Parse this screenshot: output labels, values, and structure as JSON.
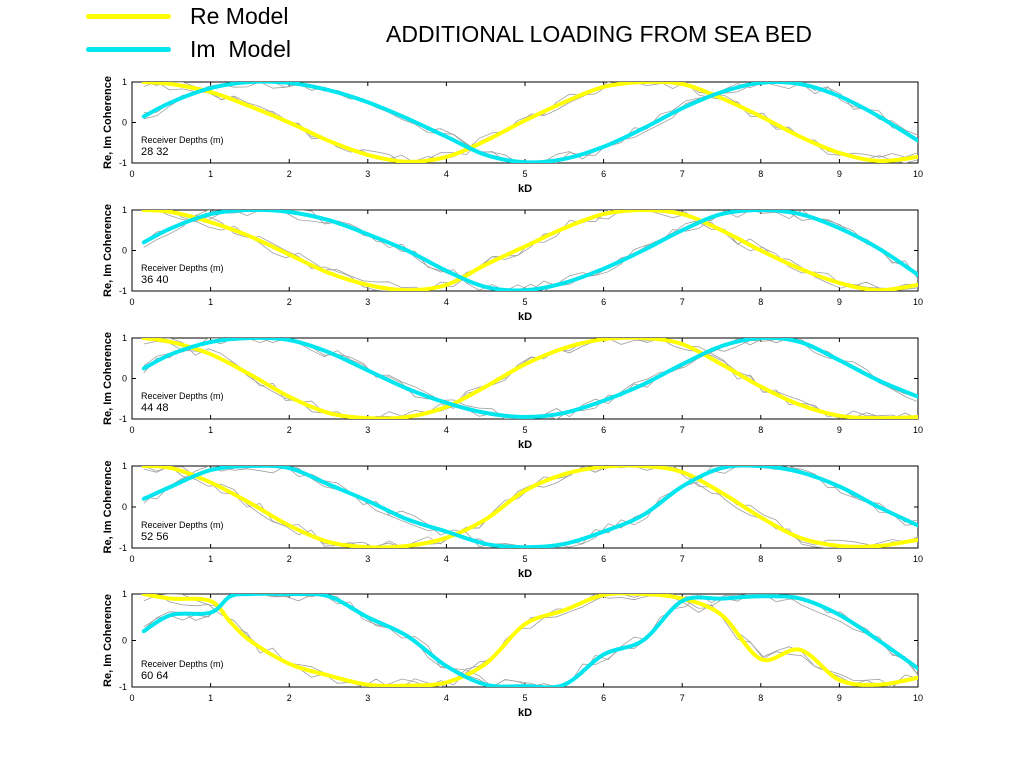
{
  "title": "ADDITIONAL LOADING FROM SEA BED",
  "legend": {
    "re_label": "Re Model",
    "im_label": "Im  Model",
    "re_color": "#ffff00",
    "im_color": "#00e5ee",
    "data_color": "#a0a0a0"
  },
  "chart_data": [
    {
      "type": "line",
      "xlabel": "kD",
      "ylabel": "Re, Im Coherence",
      "xlim": [
        0,
        10
      ],
      "ylim": [
        -1,
        1
      ],
      "xticks": [
        "0",
        "1",
        "2",
        "3",
        "4",
        "5",
        "6",
        "7",
        "8",
        "9",
        "10"
      ],
      "yticks": [
        "1",
        "0",
        "-1"
      ],
      "annotation_title": "Receiver Depths (m)",
      "annotation_value": "28  32",
      "series": [
        {
          "name": "Re Model",
          "x": [
            0.15,
            0.5,
            1.0,
            1.5,
            2.0,
            2.5,
            3.0,
            3.5,
            4.0,
            4.5,
            5.0,
            5.5,
            6.0,
            6.5,
            7.0,
            7.5,
            8.0,
            8.5,
            9.0,
            9.5,
            10.0
          ],
          "y": [
            1.0,
            0.95,
            0.75,
            0.4,
            0.0,
            -0.45,
            -0.8,
            -0.97,
            -0.85,
            -0.45,
            0.05,
            0.5,
            0.88,
            1.0,
            0.95,
            0.6,
            0.15,
            -0.35,
            -0.75,
            -0.95,
            -0.85
          ]
        },
        {
          "name": "Im  Model",
          "x": [
            0.15,
            0.5,
            1.0,
            1.5,
            2.0,
            2.5,
            3.0,
            3.5,
            4.0,
            4.5,
            5.0,
            5.5,
            6.0,
            6.5,
            7.0,
            7.5,
            8.0,
            8.5,
            9.0,
            9.5,
            10.0
          ],
          "y": [
            0.15,
            0.5,
            0.85,
            1.0,
            0.98,
            0.8,
            0.5,
            0.1,
            -0.35,
            -0.8,
            -0.98,
            -0.9,
            -0.6,
            -0.15,
            0.35,
            0.75,
            0.98,
            0.95,
            0.65,
            0.15,
            -0.45
          ]
        }
      ]
    },
    {
      "type": "line",
      "xlabel": "kD",
      "ylabel": "Re, Im Coherence",
      "xlim": [
        0,
        10
      ],
      "ylim": [
        -1,
        1
      ],
      "xticks": [
        "0",
        "1",
        "2",
        "3",
        "4",
        "5",
        "6",
        "7",
        "8",
        "9",
        "10"
      ],
      "yticks": [
        "1",
        "0",
        "-1"
      ],
      "annotation_title": "Receiver Depths (m)",
      "annotation_value": "36  40",
      "series": [
        {
          "name": "Re Model",
          "x": [
            0.15,
            0.5,
            1.0,
            1.5,
            2.0,
            2.5,
            3.0,
            3.5,
            4.0,
            4.5,
            5.0,
            5.5,
            6.0,
            6.5,
            7.0,
            7.5,
            8.0,
            8.5,
            9.0,
            9.5,
            10.0
          ],
          "y": [
            1.0,
            0.95,
            0.7,
            0.35,
            -0.1,
            -0.55,
            -0.85,
            -0.98,
            -0.85,
            -0.35,
            0.1,
            0.55,
            0.9,
            1.0,
            0.9,
            0.5,
            0.0,
            -0.45,
            -0.8,
            -0.98,
            -0.85
          ]
        },
        {
          "name": "Im  Model",
          "x": [
            0.15,
            0.5,
            1.0,
            1.5,
            2.0,
            2.5,
            3.0,
            3.5,
            4.0,
            4.5,
            5.0,
            5.5,
            6.0,
            6.5,
            7.0,
            7.5,
            8.0,
            8.5,
            9.0,
            9.5,
            10.0
          ],
          "y": [
            0.2,
            0.55,
            0.9,
            1.0,
            0.95,
            0.75,
            0.4,
            0.0,
            -0.5,
            -0.9,
            -0.98,
            -0.8,
            -0.45,
            0.0,
            0.5,
            0.9,
            1.0,
            0.9,
            0.55,
            0.05,
            -0.6
          ]
        }
      ]
    },
    {
      "type": "line",
      "xlabel": "kD",
      "ylabel": "Re, Im Coherence",
      "xlim": [
        0,
        10
      ],
      "ylim": [
        -1,
        1
      ],
      "xticks": [
        "0",
        "1",
        "2",
        "3",
        "4",
        "5",
        "6",
        "7",
        "8",
        "9",
        "10"
      ],
      "yticks": [
        "1",
        "0",
        "-1"
      ],
      "annotation_title": "Receiver Depths (m)",
      "annotation_value": "44  48",
      "series": [
        {
          "name": "Re Model",
          "x": [
            0.15,
            0.5,
            1.0,
            1.5,
            2.0,
            2.5,
            3.0,
            3.5,
            4.0,
            4.5,
            5.0,
            5.5,
            6.0,
            6.5,
            7.0,
            7.5,
            8.0,
            8.5,
            9.0,
            9.5,
            10.0
          ],
          "y": [
            1.0,
            0.9,
            0.6,
            0.1,
            -0.45,
            -0.85,
            -0.98,
            -0.95,
            -0.7,
            -0.2,
            0.35,
            0.75,
            0.97,
            1.0,
            0.85,
            0.35,
            -0.2,
            -0.65,
            -0.92,
            -0.98,
            -0.95
          ]
        },
        {
          "name": "Im  Model",
          "x": [
            0.15,
            0.5,
            1.0,
            1.5,
            2.0,
            2.5,
            3.0,
            3.5,
            4.0,
            4.5,
            5.0,
            5.5,
            6.0,
            6.5,
            7.0,
            7.5,
            8.0,
            8.5,
            9.0,
            9.5,
            10.0
          ],
          "y": [
            0.25,
            0.6,
            0.9,
            1.0,
            0.95,
            0.65,
            0.2,
            -0.25,
            -0.6,
            -0.85,
            -0.95,
            -0.85,
            -0.55,
            -0.15,
            0.35,
            0.8,
            1.0,
            0.9,
            0.45,
            -0.05,
            -0.45
          ]
        }
      ]
    },
    {
      "type": "line",
      "xlabel": "kD",
      "ylabel": "Re, Im Coherence",
      "xlim": [
        0,
        10
      ],
      "ylim": [
        -1,
        1
      ],
      "xticks": [
        "0",
        "1",
        "2",
        "3",
        "4",
        "5",
        "6",
        "7",
        "8",
        "9",
        "10"
      ],
      "yticks": [
        "1",
        "0",
        "-1"
      ],
      "annotation_title": "Receiver Depths (m)",
      "annotation_value": "52  56",
      "series": [
        {
          "name": "Re Model",
          "x": [
            0.15,
            0.5,
            1.0,
            1.5,
            2.0,
            2.5,
            3.0,
            3.5,
            4.0,
            4.5,
            5.0,
            5.5,
            6.0,
            6.5,
            7.0,
            7.5,
            8.0,
            8.5,
            9.0,
            9.5,
            10.0
          ],
          "y": [
            1.0,
            0.95,
            0.6,
            0.1,
            -0.45,
            -0.85,
            -0.98,
            -0.95,
            -0.75,
            -0.3,
            0.4,
            0.8,
            0.98,
            1.0,
            0.85,
            0.35,
            -0.25,
            -0.75,
            -0.95,
            -0.95,
            -0.8
          ]
        },
        {
          "name": "Im  Model",
          "x": [
            0.15,
            0.5,
            1.0,
            1.5,
            2.0,
            2.5,
            3.0,
            3.5,
            4.0,
            4.5,
            5.0,
            5.5,
            6.0,
            6.5,
            7.0,
            7.5,
            8.0,
            8.5,
            9.0,
            9.5,
            10.0
          ],
          "y": [
            0.2,
            0.5,
            0.9,
            1.0,
            0.95,
            0.55,
            0.15,
            -0.3,
            -0.6,
            -0.9,
            -0.98,
            -0.9,
            -0.6,
            -0.2,
            0.5,
            0.95,
            1.0,
            0.85,
            0.5,
            0.0,
            -0.45
          ]
        }
      ]
    },
    {
      "type": "line",
      "xlabel": "kD",
      "ylabel": "Re, Im Coherence",
      "xlim": [
        0,
        10
      ],
      "ylim": [
        -1,
        1
      ],
      "xticks": [
        "0",
        "1",
        "2",
        "3",
        "4",
        "5",
        "6",
        "7",
        "8",
        "9",
        "10"
      ],
      "yticks": [
        "1",
        "0",
        "-1"
      ],
      "annotation_title": "Receiver Depths (m)",
      "annotation_value": "60  64",
      "series": [
        {
          "name": "Re Model",
          "x": [
            0.15,
            0.5,
            1.0,
            1.25,
            1.5,
            2.0,
            2.5,
            3.0,
            3.5,
            4.0,
            4.5,
            5.0,
            5.5,
            6.0,
            6.5,
            7.0,
            7.5,
            8.0,
            8.5,
            9.0,
            9.5,
            10.0
          ],
          "y": [
            1.0,
            0.9,
            0.85,
            0.4,
            0.0,
            -0.5,
            -0.75,
            -0.95,
            -0.97,
            -0.9,
            -0.5,
            0.35,
            0.65,
            0.98,
            1.0,
            0.9,
            0.55,
            -0.4,
            -0.2,
            -0.85,
            -0.95,
            -0.8
          ]
        },
        {
          "name": "Im  Model",
          "x": [
            0.15,
            0.5,
            1.0,
            1.25,
            1.5,
            2.0,
            2.5,
            3.0,
            3.5,
            4.0,
            4.5,
            5.0,
            5.5,
            6.0,
            6.5,
            7.0,
            7.5,
            8.0,
            8.5,
            9.0,
            9.5,
            10.0
          ],
          "y": [
            0.2,
            0.55,
            0.6,
            0.95,
            1.0,
            1.0,
            0.95,
            0.5,
            0.1,
            -0.55,
            -0.95,
            -0.98,
            -0.95,
            -0.3,
            0.0,
            0.85,
            0.9,
            0.95,
            0.9,
            0.55,
            0.0,
            -0.6
          ]
        }
      ]
    }
  ]
}
